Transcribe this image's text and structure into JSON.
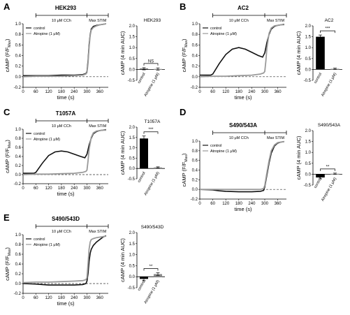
{
  "panels": [
    {
      "label": "A",
      "title": "HEK293",
      "stim": {
        "cch_label": "10 μM CCh",
        "max_label": "Max STIM"
      },
      "line_chart": {
        "type": "line",
        "xlabel": "time (s)",
        "ylabel": "cAMP (F/F",
        "ylabel_sub": "Max",
        "xlim": [
          0,
          400
        ],
        "ylim": [
          -0.2,
          1.0
        ],
        "x_ticks": [
          0,
          60,
          120,
          180,
          240,
          300,
          360
        ],
        "y_ticks": [
          -0.2,
          0.0,
          0.2,
          0.4,
          0.6,
          0.8,
          1.0
        ],
        "legend": [
          "control",
          "Atropine (1 μM)"
        ],
        "series": [
          {
            "name": "control",
            "style": "dark",
            "x": [
              0,
              60,
              120,
              180,
              240,
              280,
              295,
              300,
              305,
              310,
              315,
              320,
              330,
              345,
              360,
              375,
              390
            ],
            "y": [
              0.02,
              0.02,
              0.02,
              0.03,
              0.03,
              0.04,
              0.06,
              0.1,
              0.3,
              0.6,
              0.8,
              0.9,
              0.95,
              0.97,
              0.98,
              0.99,
              1.0
            ]
          },
          {
            "name": "Atropine (1 μM)",
            "style": "light",
            "x": [
              0,
              60,
              120,
              180,
              240,
              280,
              295,
              300,
              305,
              310,
              315,
              320,
              330,
              345,
              360,
              375,
              390
            ],
            "y": [
              0.0,
              0.01,
              0.01,
              0.01,
              0.02,
              0.03,
              0.05,
              0.08,
              0.25,
              0.55,
              0.78,
              0.88,
              0.93,
              0.96,
              0.98,
              0.99,
              1.0
            ]
          }
        ]
      },
      "bar_chart": {
        "type": "bar",
        "title": "HEK293",
        "ylabel": "cAMP (4 min AUC)",
        "ylim": [
          -0.5,
          2.0
        ],
        "y_ticks": [
          -0.5,
          0.0,
          0.5,
          1.0,
          1.5,
          2.0
        ],
        "categories": [
          "control",
          "Atropine (1 μM)"
        ],
        "values": [
          0.03,
          0.02
        ],
        "errors": [
          0.05,
          0.05
        ],
        "significance": "NS"
      }
    },
    {
      "label": "B",
      "title": "AC2",
      "stim": {
        "cch_label": "10 μM CCh",
        "max_label": "Max STIM"
      },
      "line_chart": {
        "type": "line",
        "xlabel": "time (s)",
        "ylabel": "cAMP (F/F",
        "ylabel_sub": "Max",
        "xlim": [
          0,
          400
        ],
        "ylim": [
          -0.2,
          1.0
        ],
        "x_ticks": [
          0,
          60,
          120,
          180,
          240,
          300,
          360
        ],
        "y_ticks": [
          -0.2,
          0.0,
          0.2,
          0.4,
          0.6,
          0.8,
          1.0
        ],
        "legend": [
          "control",
          "Atropine (1 μM)"
        ],
        "series": [
          {
            "name": "control",
            "style": "dark",
            "x": [
              0,
              50,
              60,
              90,
              120,
              150,
              180,
              210,
              240,
              270,
              290,
              300,
              310,
              320,
              330,
              345,
              360,
              375,
              390
            ],
            "y": [
              0.03,
              0.03,
              0.05,
              0.25,
              0.42,
              0.52,
              0.55,
              0.52,
              0.46,
              0.4,
              0.37,
              0.45,
              0.65,
              0.8,
              0.9,
              0.95,
              0.97,
              0.98,
              0.99
            ]
          },
          {
            "name": "Atropine (1 μM)",
            "style": "light",
            "x": [
              0,
              60,
              120,
              180,
              240,
              280,
              295,
              300,
              305,
              310,
              320,
              330,
              345,
              360,
              375,
              390
            ],
            "y": [
              0.0,
              0.01,
              0.01,
              0.02,
              0.03,
              0.05,
              0.07,
              0.1,
              0.3,
              0.55,
              0.82,
              0.92,
              0.96,
              0.97,
              0.98,
              0.98
            ]
          }
        ]
      },
      "bar_chart": {
        "type": "bar",
        "title": "AC2",
        "ylabel": "cAMP (4 min AUC)",
        "ylim": [
          -0.5,
          2.0
        ],
        "y_ticks": [
          -0.5,
          0.0,
          0.5,
          1.0,
          1.5,
          2.0
        ],
        "categories": [
          "control",
          "Atropine (1 μM)"
        ],
        "values": [
          1.5,
          0.03
        ],
        "errors": [
          0.08,
          0.03
        ],
        "significance": "***"
      }
    },
    {
      "label": "C",
      "title": "T1057A",
      "stim": {
        "cch_label": "10 μM CCh",
        "max_label": "Max STIM"
      },
      "line_chart": {
        "type": "line",
        "xlabel": "time (s)",
        "ylabel": "cAMP (F/F",
        "ylabel_sub": "Max",
        "xlim": [
          0,
          400
        ],
        "ylim": [
          -0.2,
          1.0
        ],
        "x_ticks": [
          0,
          60,
          120,
          180,
          240,
          300,
          360
        ],
        "y_ticks": [
          -0.2,
          0.0,
          0.2,
          0.4,
          0.6,
          0.8,
          1.0
        ],
        "legend": [
          "control",
          "Atropine (1 μM)"
        ],
        "series": [
          {
            "name": "control",
            "style": "dark",
            "x": [
              0,
              50,
              60,
              90,
              120,
              150,
              180,
              210,
              240,
              270,
              290,
              300,
              310,
              320,
              330,
              345,
              360,
              375,
              390
            ],
            "y": [
              0.03,
              0.03,
              0.05,
              0.25,
              0.42,
              0.5,
              0.52,
              0.5,
              0.45,
              0.4,
              0.37,
              0.45,
              0.65,
              0.8,
              0.9,
              0.95,
              0.97,
              0.98,
              0.99
            ]
          },
          {
            "name": "Atropine (1 μM)",
            "style": "light",
            "x": [
              0,
              60,
              120,
              180,
              240,
              280,
              295,
              300,
              305,
              310,
              320,
              330,
              345,
              360,
              375,
              390
            ],
            "y": [
              0.0,
              0.01,
              0.01,
              0.02,
              0.03,
              0.05,
              0.07,
              0.1,
              0.3,
              0.55,
              0.82,
              0.92,
              0.96,
              0.97,
              0.98,
              0.98
            ]
          }
        ]
      },
      "bar_chart": {
        "type": "bar",
        "title": "T1057A",
        "ylabel": "cAMP (4 min AUC)",
        "ylim": [
          -0.5,
          2.0
        ],
        "y_ticks": [
          -0.5,
          0.0,
          0.5,
          1.0,
          1.5,
          2.0
        ],
        "categories": [
          "control",
          "Atropine (1 μM)"
        ],
        "values": [
          1.45,
          0.05
        ],
        "errors": [
          0.12,
          0.03
        ],
        "significance": "***"
      }
    },
    {
      "label": "D",
      "title": "S490/543A",
      "stim": {
        "cch_label": "10 μM CCh",
        "max_label": "Max STIM"
      },
      "line_chart": {
        "type": "line",
        "xlabel": "time (s)",
        "ylabel": "cAMP (F/F",
        "ylabel_sub": "Max",
        "xlim": [
          0,
          400
        ],
        "ylim": [
          -0.2,
          1.0
        ],
        "x_ticks": [
          0,
          60,
          120,
          180,
          240,
          300,
          360
        ],
        "y_ticks": [
          -0.2,
          0.0,
          0.2,
          0.4,
          0.6,
          0.8,
          1.0
        ],
        "legend": [
          "control",
          "Atropine (1 μM)"
        ],
        "series": [
          {
            "name": "control",
            "style": "dark",
            "x": [
              0,
              60,
              90,
              120,
              180,
              240,
              280,
              295,
              300,
              310,
              320,
              330,
              345,
              360,
              375,
              390
            ],
            "y": [
              0.0,
              -0.01,
              -0.03,
              -0.04,
              -0.05,
              -0.05,
              -0.04,
              -0.02,
              0.05,
              0.3,
              0.55,
              0.75,
              0.9,
              0.96,
              0.98,
              0.99
            ]
          },
          {
            "name": "Atropine (1 μM)",
            "style": "light",
            "x": [
              0,
              60,
              120,
              180,
              240,
              280,
              295,
              300,
              310,
              320,
              330,
              345,
              360,
              375,
              390
            ],
            "y": [
              0.0,
              0.0,
              0.0,
              0.0,
              0.0,
              0.0,
              0.02,
              0.08,
              0.35,
              0.6,
              0.8,
              0.92,
              0.97,
              0.98,
              0.99
            ]
          }
        ]
      },
      "bar_chart": {
        "type": "bar",
        "title": "S490/543A",
        "ylabel": "cAMP (4 min AUC)",
        "ylim": [
          -0.5,
          2.0
        ],
        "y_ticks": [
          -0.5,
          0.0,
          0.5,
          1.0,
          1.5,
          2.0
        ],
        "categories": [
          "control",
          "Atropine (1 μM)"
        ],
        "values": [
          -0.15,
          0.02
        ],
        "errors": [
          0.06,
          0.03
        ],
        "significance": "**"
      }
    },
    {
      "label": "E",
      "title": "S490/543D",
      "stim": {
        "cch_label": "10 μM CCh",
        "max_label": "Max STIM"
      },
      "line_chart": {
        "type": "line",
        "xlabel": "time (s)",
        "ylabel": "cAMP (F/F",
        "ylabel_sub": "Max",
        "xlim": [
          0,
          400
        ],
        "ylim": [
          -0.2,
          1.0
        ],
        "x_ticks": [
          0,
          60,
          120,
          180,
          240,
          300,
          360
        ],
        "y_ticks": [
          -0.2,
          0.0,
          0.2,
          0.4,
          0.6,
          0.8,
          1.0
        ],
        "legend": [
          "control",
          "Atropine (1 μM)"
        ],
        "series": [
          {
            "name": "control",
            "style": "dark",
            "x": [
              0,
              60,
              90,
              120,
              180,
              240,
              280,
              295,
              300,
              305,
              310,
              315,
              320,
              330,
              345,
              360,
              375,
              390
            ],
            "y": [
              0.0,
              -0.01,
              -0.02,
              -0.03,
              -0.03,
              -0.03,
              -0.02,
              0.0,
              0.05,
              0.2,
              0.45,
              0.62,
              0.7,
              0.78,
              0.85,
              0.9,
              0.95,
              0.98
            ]
          },
          {
            "name": "Atropine (1 μM)",
            "style": "light",
            "x": [
              0,
              60,
              120,
              180,
              240,
              280,
              295,
              300,
              305,
              310,
              315,
              320,
              330,
              345,
              360,
              375,
              390
            ],
            "y": [
              0.02,
              0.03,
              0.03,
              0.04,
              0.05,
              0.06,
              0.08,
              0.12,
              0.4,
              0.7,
              0.85,
              0.9,
              0.92,
              0.94,
              0.95,
              0.96,
              0.97
            ]
          }
        ]
      },
      "bar_chart": {
        "type": "bar",
        "title": "S490/543D",
        "ylabel": "cAMP (4 min AUC)",
        "ylim": [
          -0.5,
          2.0
        ],
        "y_ticks": [
          -0.5,
          0.0,
          0.5,
          1.0,
          1.5,
          2.0
        ],
        "categories": [
          "control",
          "Atropine (1 μM)"
        ],
        "values": [
          -0.1,
          0.12
        ],
        "errors": [
          0.08,
          0.06
        ],
        "significance": "**"
      }
    }
  ]
}
